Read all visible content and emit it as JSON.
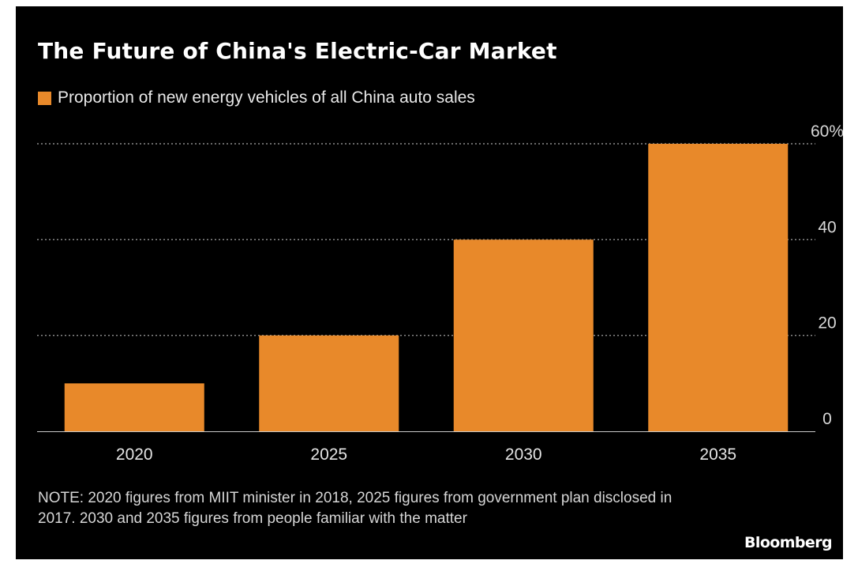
{
  "header": {
    "title": "The Future of China's Electric-Car Market"
  },
  "colors": {
    "background": "#000000",
    "bar": "#e8892a",
    "grid": "#8a8a8a",
    "baseline": "#c8c8c8"
  },
  "chart_data": {
    "type": "bar",
    "title": "The Future of China's Electric-Car Market",
    "categories": [
      "2020",
      "2025",
      "2030",
      "2035"
    ],
    "series": [
      {
        "name": "Proportion of new energy vehicles of all China auto sales",
        "values": [
          10,
          20,
          40,
          60
        ]
      }
    ],
    "ylim": [
      0,
      60
    ],
    "yticks": [
      0,
      20,
      40,
      60
    ],
    "ytick_labels": [
      "0",
      "20",
      "40",
      "60%"
    ],
    "y_axis_side": "right",
    "grid": "horizontal dotted",
    "legend": "top-left",
    "xlabel": "",
    "ylabel": ""
  },
  "footer": {
    "note": "NOTE: 2020 figures from MIIT minister in 2018, 2025 figures from government plan disclosed in 2017. 2030 and 2035 figures from people familiar with the matter",
    "source_logo": "Bloomberg"
  }
}
